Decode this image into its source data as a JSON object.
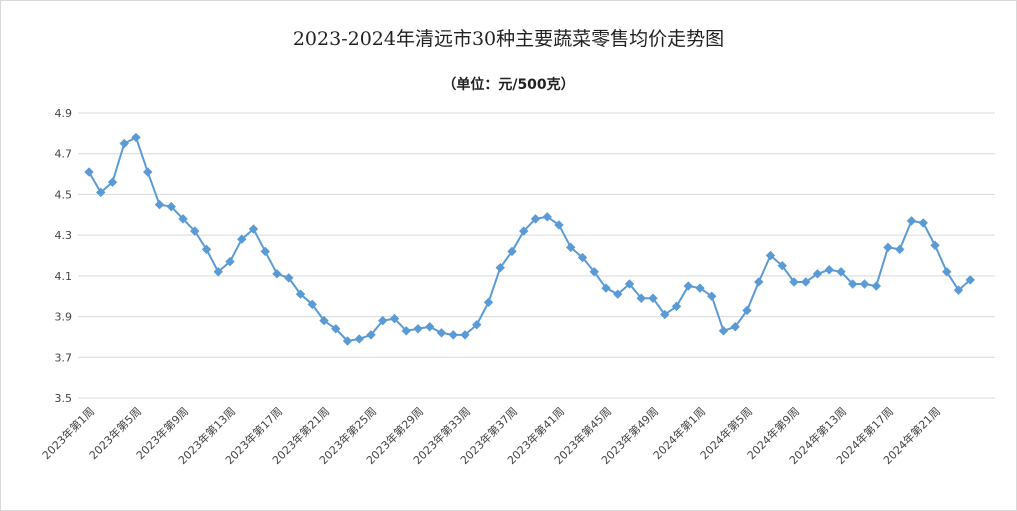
{
  "chart_data": {
    "type": "line",
    "title": "2023-2024年清远市30种主要蔬菜零售均价走势图",
    "subtitle": "（单位：元/500克）",
    "xlabel": "",
    "ylabel": "",
    "ylim": [
      3.5,
      4.9
    ],
    "yticks": [
      "3.5",
      "3.7",
      "3.9",
      "4.1",
      "4.3",
      "4.5",
      "4.7",
      "4.9"
    ],
    "grid": "horizontal",
    "legend": "none",
    "color": "#5b9bd5",
    "x_tick_labels": [
      "2023年第1周",
      "2023年第5周",
      "2023年第9周",
      "2023年第13周",
      "2023年第17周",
      "2023年第21周",
      "2023年第25周",
      "2023年第29周",
      "2023年第33周",
      "2023年第37周",
      "2023年第41周",
      "2023年第45周",
      "2023年第49周",
      "2024年第1周",
      "2024年第5周",
      "2024年第9周",
      "2024年第13周",
      "2024年第17周",
      "2024年第21周"
    ],
    "values": [
      4.61,
      4.51,
      4.56,
      4.75,
      4.78,
      4.61,
      4.45,
      4.44,
      4.38,
      4.32,
      4.23,
      4.12,
      4.17,
      4.28,
      4.33,
      4.22,
      4.11,
      4.09,
      4.01,
      3.96,
      3.88,
      3.84,
      3.78,
      3.79,
      3.81,
      3.88,
      3.89,
      3.83,
      3.84,
      3.85,
      3.82,
      3.81,
      3.81,
      3.86,
      3.97,
      4.14,
      4.22,
      4.32,
      4.38,
      4.39,
      4.35,
      4.24,
      4.19,
      4.12,
      4.04,
      4.01,
      4.06,
      3.99,
      3.99,
      3.91,
      3.95,
      4.05,
      4.04,
      4.0,
      3.83,
      3.85,
      3.93,
      4.07,
      4.2,
      4.15,
      4.07,
      4.07,
      4.11,
      4.13,
      4.12,
      4.06,
      4.06,
      4.05,
      4.24,
      4.23,
      4.37,
      4.36,
      4.25,
      4.12,
      4.03,
      4.08
    ]
  }
}
